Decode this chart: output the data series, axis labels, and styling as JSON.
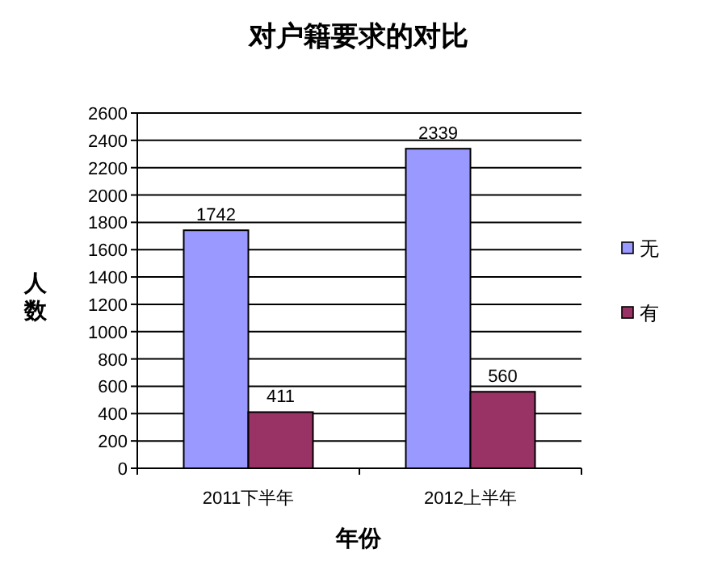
{
  "chart_data": {
    "type": "bar",
    "title": "对户籍要求的对比",
    "xlabel": "年份",
    "ylabel": "人数",
    "categories": [
      "2011下半年",
      "2012上半年"
    ],
    "series": [
      {
        "name": "无",
        "color": "#9999ff",
        "values": [
          1742,
          2339
        ]
      },
      {
        "name": "有",
        "color": "#993366",
        "values": [
          411,
          560
        ]
      }
    ],
    "ylim": [
      0,
      2600
    ],
    "yticks": [
      0,
      200,
      400,
      600,
      800,
      1000,
      1200,
      1400,
      1600,
      1800,
      2000,
      2200,
      2400,
      2600
    ],
    "grid": "y",
    "legend": "right",
    "data_labels": true
  }
}
